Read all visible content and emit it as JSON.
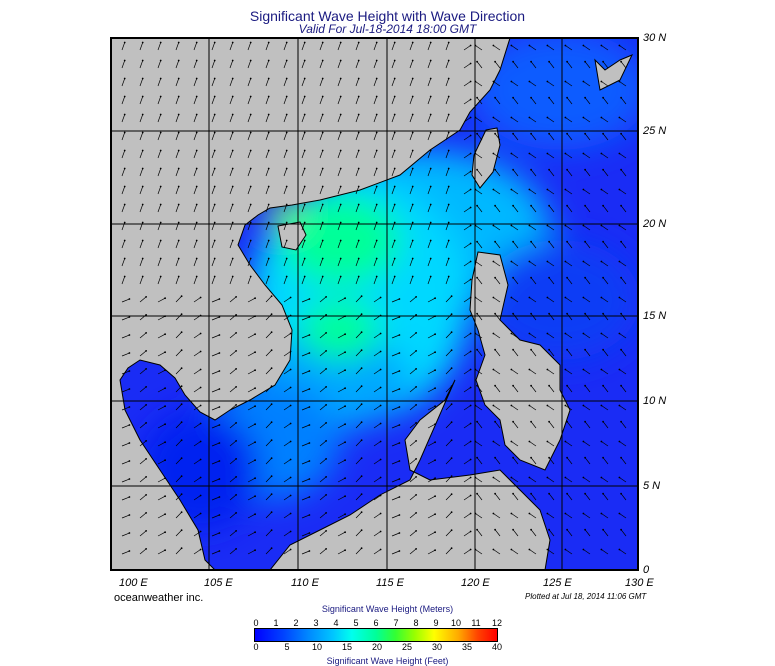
{
  "title": "Significant Wave Height with Wave Direction",
  "subtitle": "Valid For Jul-18-2014 18:00 GMT",
  "lat_labels": [
    "30 N",
    "25 N",
    "20 N",
    "15 N",
    "10 N",
    "5 N",
    "0"
  ],
  "lon_labels": [
    "100 E",
    "105 E",
    "110 E",
    "115 E",
    "120 E",
    "125 E",
    "130 E"
  ],
  "credit": "oceanweather inc.",
  "plotted": "Plotted at Jul 18, 2014 11:06 GMT",
  "colorbar": {
    "title_top": "Significant Wave Height (Meters)",
    "title_bottom": "Significant Wave Height (Feet)",
    "meters": [
      "0",
      "1",
      "2",
      "3",
      "4",
      "5",
      "6",
      "7",
      "8",
      "9",
      "10",
      "11",
      "12"
    ],
    "feet": [
      "0",
      "5",
      "10",
      "15",
      "20",
      "25",
      "30",
      "35",
      "40"
    ]
  },
  "colors": {
    "land": "#c0c0c0",
    "ocean_low": "#0000ff",
    "ocean_mid": "#00c8ff",
    "ocean_high": "#00ff66",
    "arrow": "#000000",
    "title": "#1a1a80"
  }
}
